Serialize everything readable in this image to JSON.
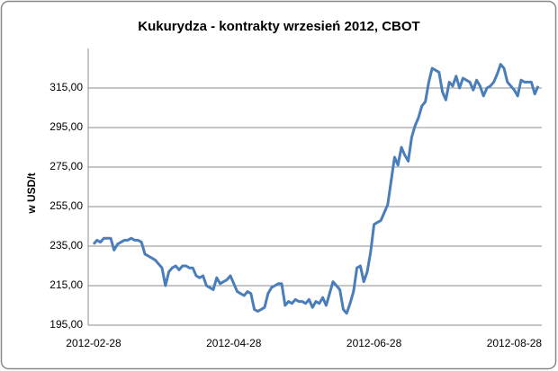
{
  "chart_data": {
    "type": "line",
    "title": "Kukurydza - kontrakty wrzesień 2012, CBOT",
    "y_label": "w USD/t",
    "color": "#4a7ebb",
    "grid": true,
    "ylim": [
      195,
      335
    ],
    "yticks": [
      {
        "value": 195,
        "label": "195,00"
      },
      {
        "value": 215,
        "label": "215,00"
      },
      {
        "value": 235,
        "label": "235,00"
      },
      {
        "value": 255,
        "label": "255,00"
      },
      {
        "value": 275,
        "label": "275,00"
      },
      {
        "value": 295,
        "label": "295,00"
      },
      {
        "value": 315,
        "label": "315,00"
      }
    ],
    "categories": [
      "2012-02-28",
      null,
      null,
      null,
      null,
      null,
      null,
      null,
      null,
      null,
      null,
      null,
      null,
      null,
      null,
      null,
      null,
      null,
      null,
      null,
      null,
      null,
      null,
      null,
      null,
      null,
      null,
      null,
      null,
      null,
      null,
      null,
      null,
      null,
      null,
      null,
      null,
      null,
      null,
      null,
      null,
      "2012-04-28",
      null,
      null,
      null,
      null,
      null,
      null,
      null,
      null,
      null,
      null,
      null,
      null,
      null,
      null,
      null,
      null,
      null,
      null,
      null,
      null,
      null,
      null,
      null,
      null,
      null,
      null,
      null,
      null,
      null,
      null,
      null,
      null,
      null,
      null,
      null,
      null,
      null,
      null,
      null,
      null,
      "2012-06-28",
      null,
      null,
      null,
      null,
      null,
      null,
      null,
      null,
      null,
      null,
      null,
      null,
      null,
      null,
      null,
      null,
      null,
      null,
      null,
      null,
      null,
      null,
      null,
      null,
      null,
      null,
      null,
      null,
      null,
      null,
      null,
      null,
      null,
      null,
      null,
      null,
      null,
      null,
      null,
      null,
      "2012-08-28",
      null,
      null,
      null,
      null,
      null,
      null,
      null
    ],
    "values": [
      236,
      238,
      237,
      239,
      239,
      239,
      233,
      236,
      237,
      238,
      238,
      239,
      238,
      238,
      237,
      231,
      230,
      229,
      228,
      226,
      224,
      215,
      222,
      224,
      225,
      223,
      225,
      225,
      224,
      224,
      220,
      219,
      220,
      215,
      214,
      213,
      219,
      216,
      217,
      218,
      220,
      216,
      212,
      211,
      210,
      212,
      211,
      203,
      202,
      203,
      204,
      211,
      214,
      215,
      216,
      216,
      205,
      207,
      206,
      208,
      207,
      207,
      206,
      208,
      204,
      207,
      206,
      209,
      205,
      211,
      217,
      215,
      213,
      203,
      201,
      206,
      212,
      224,
      225,
      217,
      222,
      232,
      246,
      247,
      248,
      252,
      256,
      268,
      280,
      276,
      285,
      281,
      278,
      290,
      296,
      300,
      306,
      308,
      318,
      325,
      324,
      323,
      313,
      309,
      318,
      316,
      321,
      315,
      320,
      319,
      318,
      314,
      319,
      316,
      311,
      315,
      316,
      318,
      322,
      327,
      325,
      318,
      316,
      314,
      311,
      319,
      318,
      318,
      318,
      312,
      316
    ]
  }
}
